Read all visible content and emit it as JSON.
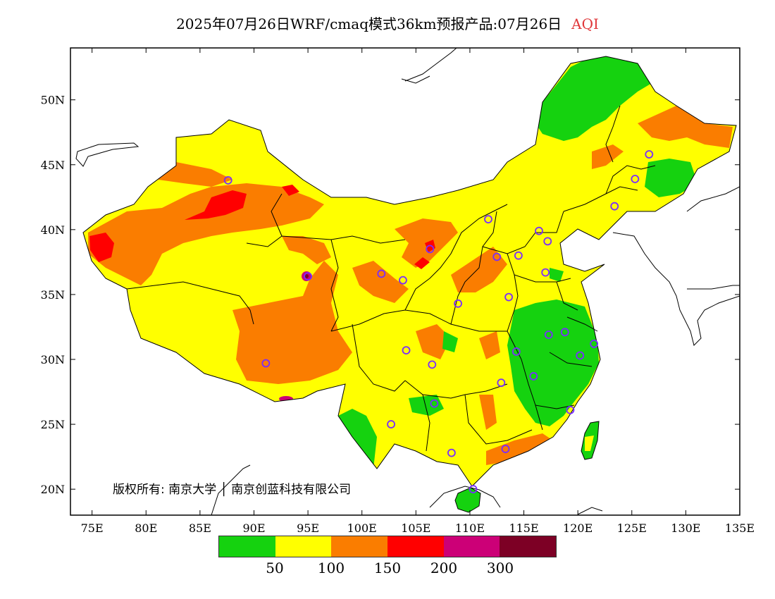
{
  "title": {
    "main": "2025年07月26日WRF/cmaq模式36km预报产品:07月26日",
    "variable": "AQI"
  },
  "map": {
    "lon_labels": [
      "75E",
      "80E",
      "85E",
      "90E",
      "95E",
      "100E",
      "105E",
      "110E",
      "115E",
      "120E",
      "125E",
      "130E",
      "135E"
    ],
    "lat_labels": [
      "50N",
      "45N",
      "40N",
      "35N",
      "30N",
      "25N",
      "20N"
    ],
    "lon_range": [
      73,
      135
    ],
    "lat_range": [
      18,
      54
    ],
    "colors": {
      "green": "#15d20f",
      "yellow": "#ffff00",
      "orange": "#fa7d00",
      "red": "#ff0000",
      "magenta": "#cc0077",
      "maroon": "#7d0025",
      "station": "#7a2cff"
    },
    "stations": [
      {
        "lon": 87.6,
        "lat": 43.8
      },
      {
        "lon": 91.1,
        "lat": 29.7
      },
      {
        "lon": 95.0,
        "lat": 36.4
      },
      {
        "lon": 101.8,
        "lat": 36.6
      },
      {
        "lon": 103.8,
        "lat": 36.1
      },
      {
        "lon": 106.3,
        "lat": 38.5
      },
      {
        "lon": 104.1,
        "lat": 30.7
      },
      {
        "lon": 106.5,
        "lat": 29.6
      },
      {
        "lon": 106.7,
        "lat": 26.6
      },
      {
        "lon": 102.7,
        "lat": 25.0
      },
      {
        "lon": 108.9,
        "lat": 34.3
      },
      {
        "lon": 111.7,
        "lat": 40.8
      },
      {
        "lon": 112.5,
        "lat": 37.9
      },
      {
        "lon": 114.5,
        "lat": 38.0
      },
      {
        "lon": 116.4,
        "lat": 39.9
      },
      {
        "lon": 117.2,
        "lat": 39.1
      },
      {
        "lon": 117.0,
        "lat": 36.7
      },
      {
        "lon": 113.6,
        "lat": 34.8
      },
      {
        "lon": 114.3,
        "lat": 30.6
      },
      {
        "lon": 112.9,
        "lat": 28.2
      },
      {
        "lon": 115.9,
        "lat": 28.7
      },
      {
        "lon": 117.3,
        "lat": 31.9
      },
      {
        "lon": 118.8,
        "lat": 32.1
      },
      {
        "lon": 120.2,
        "lat": 30.3
      },
      {
        "lon": 121.5,
        "lat": 31.2
      },
      {
        "lon": 119.3,
        "lat": 26.1
      },
      {
        "lon": 113.3,
        "lat": 23.1
      },
      {
        "lon": 108.3,
        "lat": 22.8
      },
      {
        "lon": 110.3,
        "lat": 20.0
      },
      {
        "lon": 123.4,
        "lat": 41.8
      },
      {
        "lon": 125.3,
        "lat": 43.9
      },
      {
        "lon": 126.6,
        "lat": 45.8
      }
    ]
  },
  "legend": {
    "colors": [
      "#15d20f",
      "#ffff00",
      "#fa7d00",
      "#ff0000",
      "#cc0077",
      "#7d0025"
    ],
    "labels": [
      "50",
      "100",
      "150",
      "200",
      "300"
    ]
  },
  "copyright": "版权所有: 南京大学 │ 南京创蓝科技有限公司"
}
